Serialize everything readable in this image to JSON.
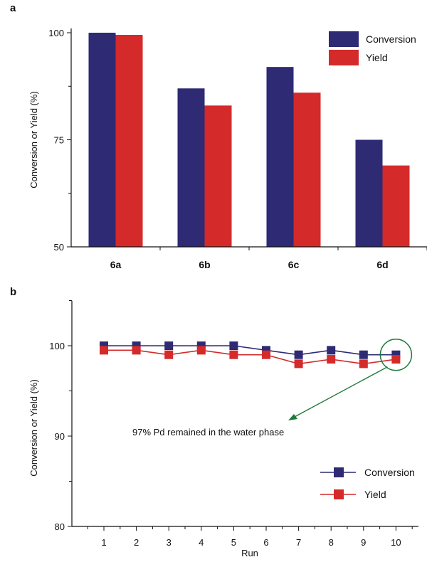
{
  "colors": {
    "conversion": "#2e2a74",
    "yield": "#d42a2a",
    "annotation": "#1f7a3a",
    "axis": "#111111"
  },
  "chart_data": [
    {
      "type": "bar",
      "panel": "a",
      "categories": [
        "6a",
        "6b",
        "6c",
        "6d"
      ],
      "series": [
        {
          "name": "Conversion",
          "values": [
            100,
            87,
            92,
            75
          ]
        },
        {
          "name": "Yield",
          "values": [
            99.5,
            83,
            86,
            69
          ]
        }
      ],
      "ylabel": "Conversion or Yield (%)",
      "xlabel": "",
      "ylim": [
        50,
        100
      ],
      "yticks": [
        50,
        75,
        100
      ],
      "legend": "top-right",
      "grid": false
    },
    {
      "type": "line",
      "panel": "b",
      "x": [
        1,
        2,
        3,
        4,
        5,
        6,
        7,
        8,
        9,
        10
      ],
      "series": [
        {
          "name": "Conversion",
          "values": [
            100,
            100,
            100,
            100,
            100,
            99.5,
            99,
            99.5,
            99,
            99
          ]
        },
        {
          "name": "Yield",
          "values": [
            99.5,
            99.5,
            99,
            99.5,
            99,
            99,
            98,
            98.5,
            98,
            98.5
          ]
        }
      ],
      "ylabel": "Conversion or Yield (%)",
      "xlabel": "Run",
      "ylim": [
        80,
        105
      ],
      "yticks": [
        80,
        90,
        100
      ],
      "legend": "bottom-right",
      "grid": false,
      "annotation": {
        "text": "97% Pd remained in the water phase",
        "target_run": 10
      }
    }
  ]
}
